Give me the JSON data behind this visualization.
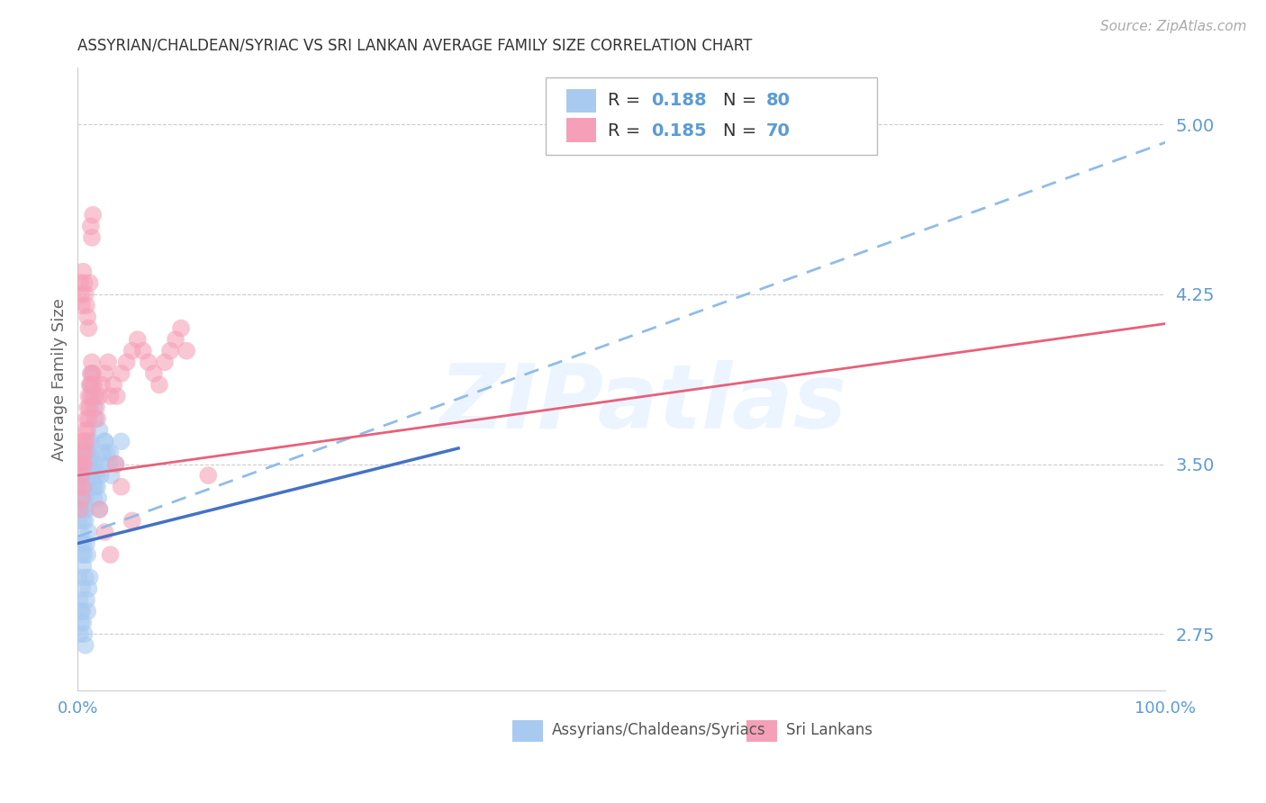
{
  "title": "ASSYRIAN/CHALDEAN/SYRIAC VS SRI LANKAN AVERAGE FAMILY SIZE CORRELATION CHART",
  "source": "Source: ZipAtlas.com",
  "ylabel": "Average Family Size",
  "xmin": 0.0,
  "xmax": 1.0,
  "ymin": 2.5,
  "ymax": 5.25,
  "yticks": [
    2.75,
    3.5,
    4.25,
    5.0
  ],
  "xticks": [
    0.0,
    0.25,
    0.5,
    0.75,
    1.0
  ],
  "xtick_labels": [
    "0.0%",
    "",
    "",
    "",
    "100.0%"
  ],
  "color_blue": "#a8caf0",
  "color_blue_line": "#4472c4",
  "color_blue_dashed": "#90bce8",
  "color_pink": "#f5a0b8",
  "color_pink_line": "#e8607a",
  "legend_r1": "0.188",
  "legend_n1": "80",
  "legend_r2": "0.185",
  "legend_n2": "70",
  "label1": "Assyrians/Chaldeans/Syriacs",
  "label2": "Sri Lankans",
  "watermark": "ZIPatlas",
  "title_color": "#333333",
  "tick_color": "#5b9bd5",
  "grid_color": "#cccccc",
  "trendline_blue_dashed": [
    [
      0.0,
      3.18
    ],
    [
      1.0,
      4.92
    ]
  ],
  "trendline_blue_solid": [
    [
      0.0,
      3.15
    ],
    [
      0.35,
      3.57
    ]
  ],
  "trendline_pink_solid": [
    [
      0.0,
      3.45
    ],
    [
      1.0,
      4.12
    ]
  ],
  "assyrian_x": [
    0.001,
    0.002,
    0.002,
    0.003,
    0.003,
    0.003,
    0.004,
    0.004,
    0.004,
    0.005,
    0.005,
    0.005,
    0.005,
    0.006,
    0.006,
    0.006,
    0.007,
    0.007,
    0.007,
    0.008,
    0.008,
    0.008,
    0.009,
    0.009,
    0.01,
    0.01,
    0.01,
    0.011,
    0.011,
    0.012,
    0.012,
    0.013,
    0.013,
    0.014,
    0.014,
    0.015,
    0.015,
    0.016,
    0.016,
    0.017,
    0.018,
    0.019,
    0.02,
    0.021,
    0.022,
    0.023,
    0.025,
    0.027,
    0.029,
    0.031,
    0.001,
    0.002,
    0.003,
    0.004,
    0.005,
    0.006,
    0.007,
    0.008,
    0.009,
    0.01,
    0.002,
    0.003,
    0.004,
    0.005,
    0.006,
    0.007,
    0.008,
    0.009,
    0.01,
    0.011,
    0.012,
    0.013,
    0.014,
    0.015,
    0.016,
    0.02,
    0.025,
    0.03,
    0.035,
    0.04
  ],
  "assyrian_y": [
    3.25,
    3.3,
    3.15,
    3.4,
    3.2,
    3.35,
    3.45,
    3.3,
    3.1,
    3.5,
    3.35,
    3.25,
    3.15,
    3.4,
    3.3,
    3.55,
    3.45,
    3.35,
    3.25,
    3.5,
    3.4,
    3.3,
    3.55,
    3.45,
    3.6,
    3.5,
    3.4,
    3.55,
    3.45,
    3.6,
    3.5,
    3.55,
    3.45,
    3.5,
    3.4,
    3.45,
    3.35,
    3.5,
    3.4,
    3.45,
    3.4,
    3.35,
    3.3,
    3.45,
    3.5,
    3.55,
    3.6,
    3.55,
    3.5,
    3.45,
    3.0,
    2.9,
    2.85,
    2.95,
    3.05,
    3.1,
    3.0,
    3.15,
    3.1,
    3.2,
    2.75,
    2.8,
    2.85,
    2.8,
    2.75,
    2.7,
    2.9,
    2.85,
    2.95,
    3.0,
    3.85,
    3.9,
    3.8,
    3.75,
    3.7,
    3.65,
    3.6,
    3.55,
    3.5,
    3.6
  ],
  "srilanka_x": [
    0.001,
    0.002,
    0.002,
    0.003,
    0.003,
    0.004,
    0.004,
    0.005,
    0.005,
    0.006,
    0.006,
    0.007,
    0.007,
    0.008,
    0.008,
    0.009,
    0.009,
    0.01,
    0.01,
    0.011,
    0.011,
    0.012,
    0.012,
    0.013,
    0.013,
    0.014,
    0.015,
    0.016,
    0.017,
    0.018,
    0.02,
    0.022,
    0.025,
    0.028,
    0.03,
    0.033,
    0.036,
    0.04,
    0.045,
    0.05,
    0.055,
    0.06,
    0.065,
    0.07,
    0.075,
    0.08,
    0.085,
    0.09,
    0.095,
    0.1,
    0.002,
    0.003,
    0.004,
    0.005,
    0.006,
    0.007,
    0.008,
    0.009,
    0.01,
    0.011,
    0.012,
    0.013,
    0.014,
    0.02,
    0.025,
    0.03,
    0.035,
    0.04,
    0.05,
    0.12
  ],
  "srilanka_y": [
    3.4,
    3.5,
    3.3,
    3.6,
    3.45,
    3.55,
    3.35,
    3.5,
    3.4,
    3.6,
    3.5,
    3.65,
    3.55,
    3.7,
    3.6,
    3.65,
    3.75,
    3.7,
    3.8,
    3.75,
    3.85,
    3.8,
    3.9,
    3.85,
    3.95,
    3.9,
    3.85,
    3.8,
    3.75,
    3.7,
    3.8,
    3.85,
    3.9,
    3.95,
    3.8,
    3.85,
    3.8,
    3.9,
    3.95,
    4.0,
    4.05,
    4.0,
    3.95,
    3.9,
    3.85,
    3.95,
    4.0,
    4.05,
    4.1,
    4.0,
    4.3,
    4.25,
    4.2,
    4.35,
    4.3,
    4.25,
    4.2,
    4.15,
    4.1,
    4.3,
    4.55,
    4.5,
    4.6,
    3.3,
    3.2,
    3.1,
    3.5,
    3.4,
    3.25,
    3.45
  ]
}
